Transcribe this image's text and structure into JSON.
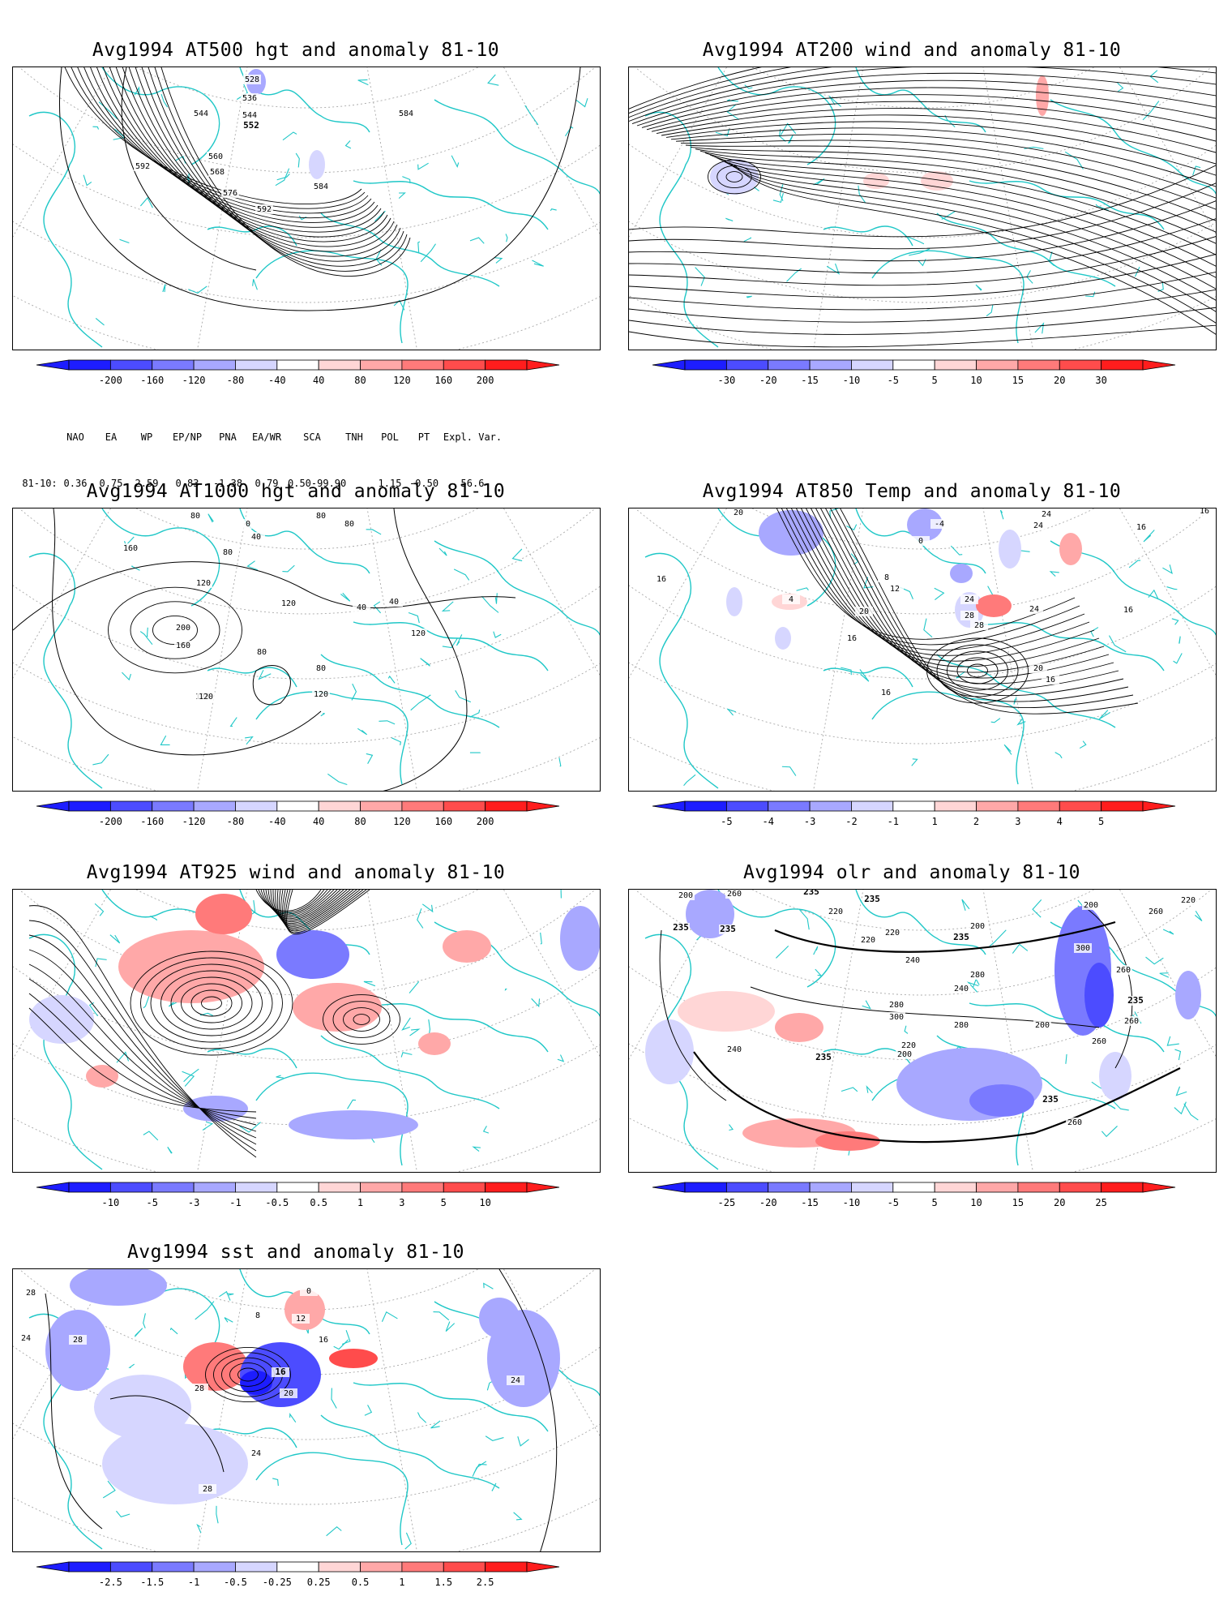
{
  "panels": [
    {
      "id": "at500",
      "title": "Avg1994 AT500 hgt and anomaly 81-10",
      "colorbar": [
        "-200",
        "-160",
        "-120",
        "-80",
        "-40",
        "40",
        "80",
        "120",
        "160",
        "200"
      ],
      "contour_labels": [
        "528",
        "536",
        "544",
        "544",
        "552",
        "560",
        "568",
        "576",
        "584",
        "592",
        "592",
        "584"
      ]
    },
    {
      "id": "at200",
      "title": "Avg1994 AT200 wind and anomaly 81-10",
      "colorbar": [
        "-30",
        "-20",
        "-15",
        "-10",
        "-5",
        "5",
        "10",
        "15",
        "20",
        "30"
      ],
      "contour_labels": []
    },
    {
      "id": "at1000",
      "title": "Avg1994 AT1000 hgt and anomaly 81-10",
      "colorbar": [
        "-200",
        "-160",
        "-120",
        "-80",
        "-40",
        "40",
        "80",
        "120",
        "160",
        "200"
      ],
      "contour_labels": [
        "80",
        "0",
        "40",
        "80",
        "80",
        "80",
        "160",
        "120",
        "120",
        "200",
        "160",
        "120",
        "40",
        "40",
        "120",
        "80",
        "80",
        "120",
        "120"
      ]
    },
    {
      "id": "at850",
      "title": "Avg1994 AT850 Temp and anomaly 81-10",
      "colorbar": [
        "-5",
        "-4",
        "-3",
        "-2",
        "-1",
        "1",
        "2",
        "3",
        "4",
        "5"
      ],
      "contour_labels": [
        "20",
        "-4",
        "0",
        "24",
        "24",
        "16",
        "16",
        "16",
        "4",
        "8",
        "12",
        "20",
        "24",
        "28",
        "28",
        "16",
        "16",
        "24",
        "20",
        "16",
        "16"
      ]
    },
    {
      "id": "at925",
      "title": "Avg1994 AT925 wind and anomaly 81-10",
      "colorbar": [
        "-10",
        "-5",
        "-3",
        "-1",
        "-0.5",
        "0.5",
        "1",
        "3",
        "5",
        "10"
      ],
      "contour_labels": []
    },
    {
      "id": "olr",
      "title": "Avg1994 olr and anomaly 81-10",
      "colorbar": [
        "-25",
        "-20",
        "-15",
        "-10",
        "-5",
        "5",
        "10",
        "15",
        "20",
        "25"
      ],
      "contour_labels": [
        "200",
        "260",
        "235",
        "220",
        "220",
        "235",
        "200",
        "200",
        "220",
        "260",
        "235",
        "235",
        "235",
        "220",
        "240",
        "280",
        "300",
        "260",
        "235",
        "240",
        "280",
        "300",
        "280",
        "200",
        "260",
        "240",
        "235",
        "220",
        "200",
        "260",
        "235",
        "260"
      ]
    },
    {
      "id": "sst",
      "title": "Avg1994 sst and anomaly 81-10",
      "colorbar": [
        "-2.5",
        "-1.5",
        "-1",
        "-0.5",
        "-0.25",
        "0.25",
        "0.5",
        "1",
        "1.5",
        "2.5"
      ],
      "contour_labels": [
        "28",
        "24",
        "28",
        "28",
        "16",
        "20",
        "24",
        "28",
        "0",
        "8",
        "12",
        "16",
        "24"
      ]
    }
  ],
  "indices": {
    "headers": [
      "NAO",
      "EA",
      "WP",
      "EP/NP",
      "PNA",
      "EA/WR",
      "SCA",
      "TNH",
      "POL",
      "PT",
      "Expl. Var."
    ],
    "row_label": "81-10:",
    "values": [
      "0.36",
      "0.75",
      "2.59",
      "0.83",
      "-1.38",
      "0.79",
      "0.50-99.90",
      "",
      "1.15",
      "-0.50",
      "56.6"
    ]
  },
  "colors": {
    "coast": "#1fc7c7",
    "grid": "#a8a8a8",
    "neg": [
      "#1d1dff",
      "#4c4cff",
      "#7a7aff",
      "#a8a8ff",
      "#d6d6ff"
    ],
    "pos": [
      "#ffd6d6",
      "#ffa8a8",
      "#ff7a7a",
      "#ff4c4c",
      "#ff1d1d"
    ]
  }
}
